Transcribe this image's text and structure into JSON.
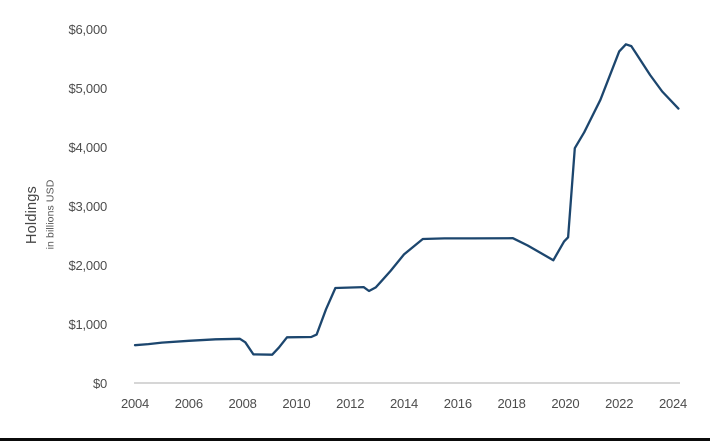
{
  "page": {
    "background": "#ffffff"
  },
  "chart_data": {
    "type": "line",
    "title": "",
    "ylabel": "Holdings",
    "ylabel_sub": "in billions USD",
    "xlabel": "",
    "legend": "none",
    "grid": "baseline-only",
    "xlim": [
      2004,
      2024.3
    ],
    "ylim": [
      0,
      6000
    ],
    "x_ticks": [
      {
        "label": "2004",
        "year": 2004
      },
      {
        "label": "2006",
        "year": 2006
      },
      {
        "label": "2008",
        "year": 2008
      },
      {
        "label": "2010",
        "year": 2010
      },
      {
        "label": "2012",
        "year": 2012
      },
      {
        "label": "2014",
        "year": 2014
      },
      {
        "label": "2016",
        "year": 2016
      },
      {
        "label": "2018",
        "year": 2018
      },
      {
        "label": "2020",
        "year": 2020
      },
      {
        "label": "2022",
        "year": 2022
      },
      {
        "label": "2024",
        "year": 2024
      }
    ],
    "y_ticks": [
      {
        "label": "$0",
        "value": 0
      },
      {
        "label": "$1,000",
        "value": 1000
      },
      {
        "label": "$2,000",
        "value": 2000
      },
      {
        "label": "$3,000",
        "value": 3000
      },
      {
        "label": "$4,000",
        "value": 4000
      },
      {
        "label": "$5,000",
        "value": 5000
      },
      {
        "label": "$6,000",
        "value": 6000
      }
    ],
    "colors": {
      "line": "#1c466e",
      "baseline": "#c9c9c9",
      "tick_text": "#4d4d4d",
      "axis_title_text": "#474747",
      "bottom_rule": "#0b0b0b"
    },
    "series": [
      {
        "name": "Holdings in billions USD",
        "color": "#1c466e",
        "points": [
          [
            2004.0,
            640
          ],
          [
            2004.5,
            660
          ],
          [
            2005.0,
            685
          ],
          [
            2006.0,
            715
          ],
          [
            2007.0,
            740
          ],
          [
            2007.9,
            750
          ],
          [
            2008.1,
            690
          ],
          [
            2008.4,
            485
          ],
          [
            2009.1,
            480
          ],
          [
            2009.35,
            600
          ],
          [
            2009.65,
            775
          ],
          [
            2010.55,
            780
          ],
          [
            2010.75,
            820
          ],
          [
            2011.1,
            1250
          ],
          [
            2011.45,
            1610
          ],
          [
            2012.5,
            1625
          ],
          [
            2012.7,
            1560
          ],
          [
            2012.95,
            1620
          ],
          [
            2013.5,
            1900
          ],
          [
            2014.0,
            2180
          ],
          [
            2014.7,
            2440
          ],
          [
            2015.5,
            2450
          ],
          [
            2016.5,
            2450
          ],
          [
            2018.05,
            2455
          ],
          [
            2018.6,
            2330
          ],
          [
            2019.1,
            2200
          ],
          [
            2019.55,
            2080
          ],
          [
            2019.95,
            2400
          ],
          [
            2020.1,
            2470
          ],
          [
            2020.35,
            3980
          ],
          [
            2020.7,
            4250
          ],
          [
            2021.3,
            4800
          ],
          [
            2022.0,
            5620
          ],
          [
            2022.25,
            5740
          ],
          [
            2022.45,
            5710
          ],
          [
            2023.15,
            5220
          ],
          [
            2023.6,
            4940
          ],
          [
            2024.2,
            4650
          ]
        ]
      }
    ]
  }
}
